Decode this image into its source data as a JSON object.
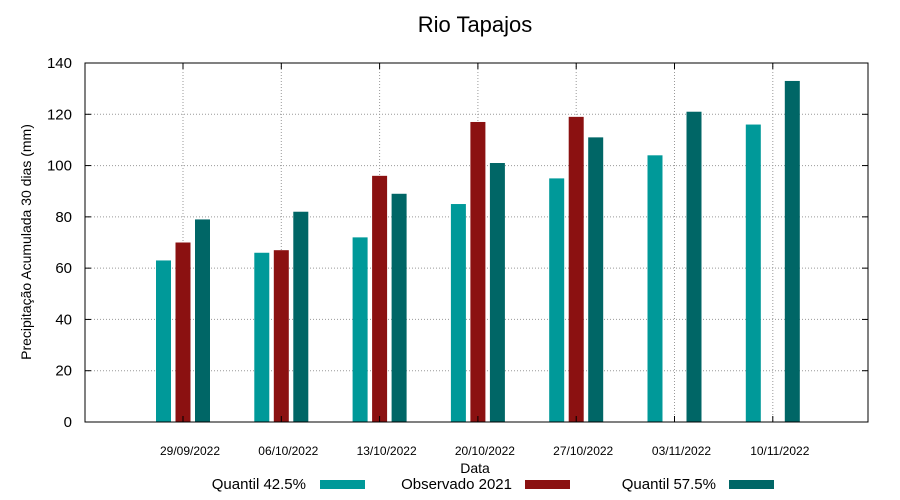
{
  "chart_data": {
    "type": "bar",
    "title": "Rio Tapajos",
    "xlabel": "Data",
    "ylabel": "Precipitação Acumulada 30 dias (mm)",
    "ylim": [
      0,
      140
    ],
    "yticks": [
      0,
      20,
      40,
      60,
      80,
      100,
      120,
      140
    ],
    "grid": true,
    "legend_position": "bottom",
    "categories": [
      "29/09/2022",
      "06/10/2022",
      "13/10/2022",
      "20/10/2022",
      "27/10/2022",
      "03/11/2022",
      "10/11/2022"
    ],
    "series": [
      {
        "name": "Quantil 42.5%",
        "color": "#009999",
        "values": [
          63,
          66,
          72,
          85,
          95,
          104,
          116
        ]
      },
      {
        "name": "Observado 2021",
        "color": "#8b1111",
        "values": [
          70,
          67,
          96,
          117,
          119,
          null,
          null
        ]
      },
      {
        "name": "Quantil 57.5%",
        "color": "#006666",
        "values": [
          79,
          82,
          89,
          101,
          111,
          121,
          133
        ]
      }
    ]
  }
}
